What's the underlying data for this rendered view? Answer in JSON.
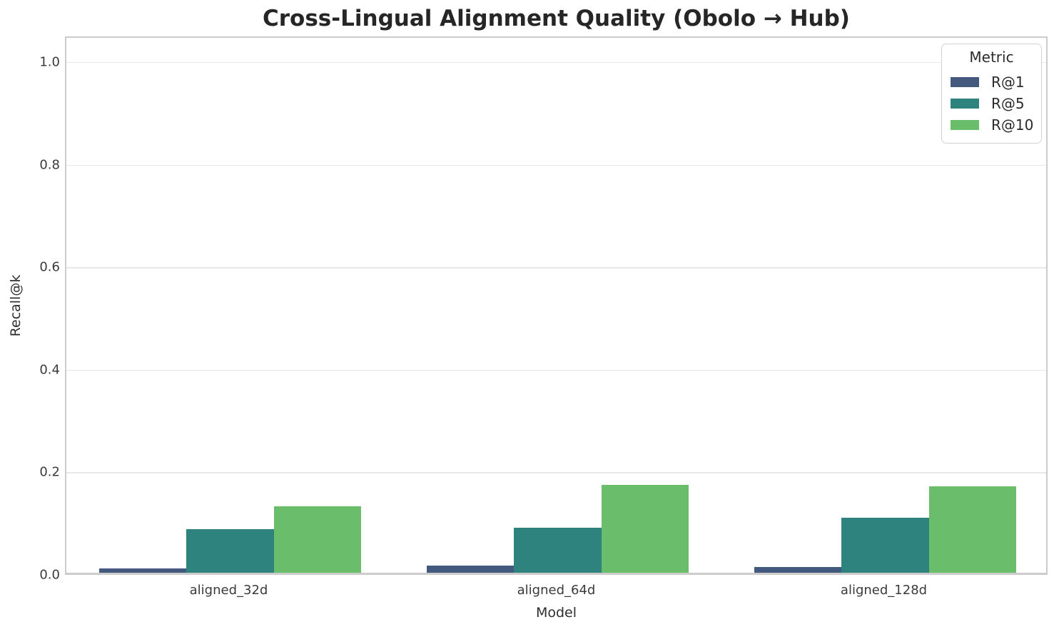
{
  "chart_data": {
    "type": "bar",
    "title": "Cross-Lingual Alignment Quality (Obolo → Hub)",
    "xlabel": "Model",
    "ylabel": "Recall@k",
    "legend_title": "Metric",
    "legend_position": "upper right",
    "grid": true,
    "background": "#ffffff",
    "grid_color": "#e8e8e8",
    "spine_color": "#cccccc",
    "categories": [
      "aligned_32d",
      "aligned_64d",
      "aligned_128d"
    ],
    "series": [
      {
        "name": "R@1",
        "color": "#44597E",
        "values": [
          0.008,
          0.014,
          0.011
        ]
      },
      {
        "name": "R@5",
        "color": "#2E837F",
        "values": [
          0.085,
          0.088,
          0.107
        ]
      },
      {
        "name": "R@10",
        "color": "#69BD6B",
        "values": [
          0.13,
          0.172,
          0.168
        ]
      }
    ],
    "ylim": [
      0,
      1.05
    ],
    "yticks": [
      0.0,
      0.2,
      0.4,
      0.6,
      0.8,
      1.0
    ],
    "ytick_labels": [
      "0.0",
      "0.2",
      "0.4",
      "0.6",
      "0.8",
      "1.0"
    ],
    "bar_group_fraction": 0.8
  }
}
